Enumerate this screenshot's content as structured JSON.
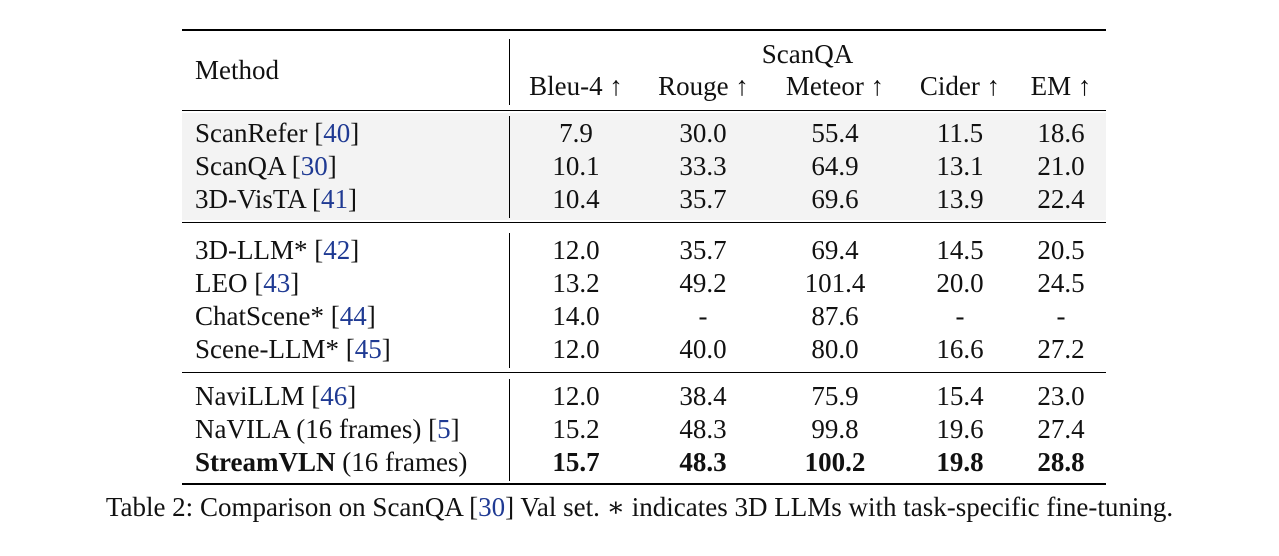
{
  "table": {
    "header": {
      "method_label": "Method",
      "group_label": "ScanQA",
      "columns": [
        "Bleu-4 ↑",
        "Rouge ↑",
        "Meteor ↑",
        "Cider ↑",
        "EM ↑"
      ]
    },
    "groups": [
      {
        "shaded": true,
        "rows": [
          {
            "method": "ScanRefer",
            "cite": "40",
            "values": [
              "7.9",
              "30.0",
              "55.4",
              "11.5",
              "18.6"
            ]
          },
          {
            "method": "ScanQA",
            "cite": "30",
            "values": [
              "10.1",
              "33.3",
              "64.9",
              "13.1",
              "21.0"
            ]
          },
          {
            "method": "3D-VisTA",
            "cite": "41",
            "values": [
              "10.4",
              "35.7",
              "69.6",
              "13.9",
              "22.4"
            ]
          }
        ]
      },
      {
        "shaded": false,
        "rows": [
          {
            "method": "3D-LLM*",
            "cite": "42",
            "values": [
              "12.0",
              "35.7",
              "69.4",
              "14.5",
              "20.5"
            ]
          },
          {
            "method": "LEO",
            "cite": "43",
            "values": [
              "13.2",
              "49.2",
              "101.4",
              "20.0",
              "24.5"
            ]
          },
          {
            "method": "ChatScene*",
            "cite": "44",
            "values": [
              "14.0",
              "-",
              "87.6",
              "-",
              "-"
            ]
          },
          {
            "method": "Scene-LLM*",
            "cite": "45",
            "values": [
              "12.0",
              "40.0",
              "80.0",
              "16.6",
              "27.2"
            ]
          }
        ]
      },
      {
        "shaded": false,
        "rows": [
          {
            "method": "NaviLLM",
            "cite": "46",
            "values": [
              "12.0",
              "38.4",
              "75.9",
              "15.4",
              "23.0"
            ]
          },
          {
            "method": "NaVILA (16 frames)",
            "cite": "5",
            "values": [
              "15.2",
              "48.3",
              "99.8",
              "19.6",
              "27.4"
            ]
          },
          {
            "method": "StreamVLN",
            "method_suffix": " (16 frames)",
            "bold": true,
            "values": [
              "15.7",
              "48.3",
              "100.2",
              "19.8",
              "28.8"
            ]
          }
        ]
      }
    ]
  },
  "caption": {
    "prefix": "Table 2: Comparison on ScanQA [",
    "cite": "30",
    "suffix": "] Val set. ∗ indicates 3D LLMs with task-specific fine-tuning."
  },
  "colors": {
    "citation": "#1f3a93",
    "shade": "#f3f3f3"
  }
}
